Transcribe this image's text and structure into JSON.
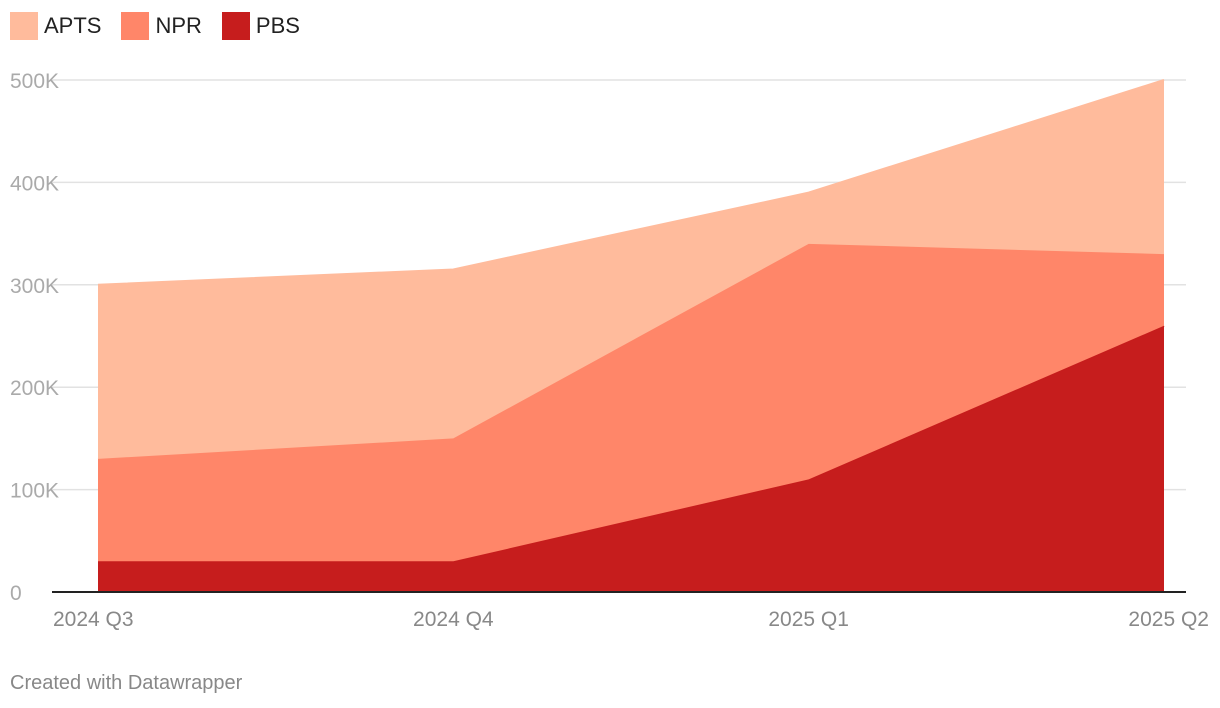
{
  "chart_data": {
    "type": "area",
    "stacked": true,
    "categories": [
      "2024 Q3",
      "2024 Q4",
      "2025 Q1",
      "2025 Q2"
    ],
    "series": [
      {
        "name": "PBS",
        "color": "#c61d1d",
        "values": [
          30000,
          30000,
          110000,
          260000
        ]
      },
      {
        "name": "NPR",
        "color": "#ff8669",
        "values": [
          100000,
          120000,
          230000,
          70000
        ]
      },
      {
        "name": "APTS",
        "color": "#ffbb9c",
        "values": [
          170000,
          165000,
          50000,
          170000
        ]
      }
    ],
    "legend_order": [
      "APTS",
      "NPR",
      "PBS"
    ],
    "ylim": [
      0,
      500000
    ],
    "yticks": [
      0,
      100000,
      200000,
      300000,
      400000,
      500000
    ],
    "ytick_labels": [
      "0",
      "100K",
      "200K",
      "300K",
      "400K",
      "500K"
    ],
    "grid": true,
    "legend_position": "top-left"
  },
  "footer": {
    "credit": "Created with Datawrapper"
  }
}
